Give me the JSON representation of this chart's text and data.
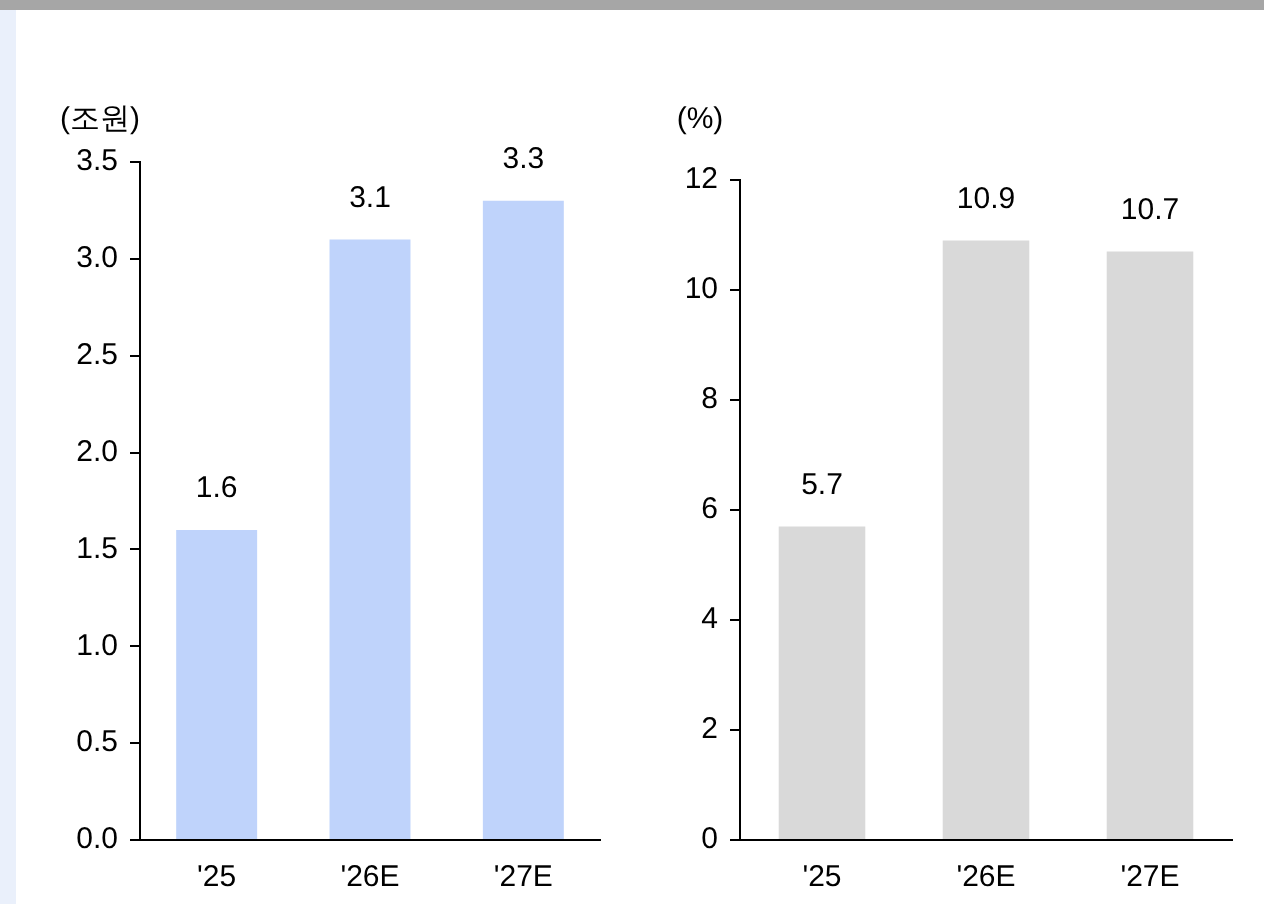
{
  "chart_data": [
    {
      "type": "bar",
      "ylabel": "(조원)",
      "categories": [
        "'25",
        "'26E",
        "'27E"
      ],
      "values": [
        1.6,
        3.1,
        3.3
      ],
      "color": "#bfd3fb",
      "ylim": [
        0,
        3.5
      ],
      "yticks": [
        {
          "value": 0,
          "label": "0.0"
        },
        {
          "value": 0.5,
          "label": "0.5"
        },
        {
          "value": 1,
          "label": "1.0"
        },
        {
          "value": 1.5,
          "label": "1.5"
        },
        {
          "value": 2,
          "label": "2.0"
        },
        {
          "value": 2.5,
          "label": "2.5"
        },
        {
          "value": 3,
          "label": "3.0"
        },
        {
          "value": 3.5,
          "label": "3.5"
        }
      ],
      "grid": false,
      "data_labels": true
    },
    {
      "type": "bar",
      "ylabel": "(%)",
      "categories": [
        "'25",
        "'26E",
        "'27E"
      ],
      "values": [
        5.7,
        10.9,
        10.7
      ],
      "color": "#d9d9d9",
      "ylim": [
        0,
        12
      ],
      "yticks": [
        0,
        2,
        4,
        6,
        8,
        10,
        12
      ],
      "grid": false,
      "data_labels": true
    }
  ]
}
